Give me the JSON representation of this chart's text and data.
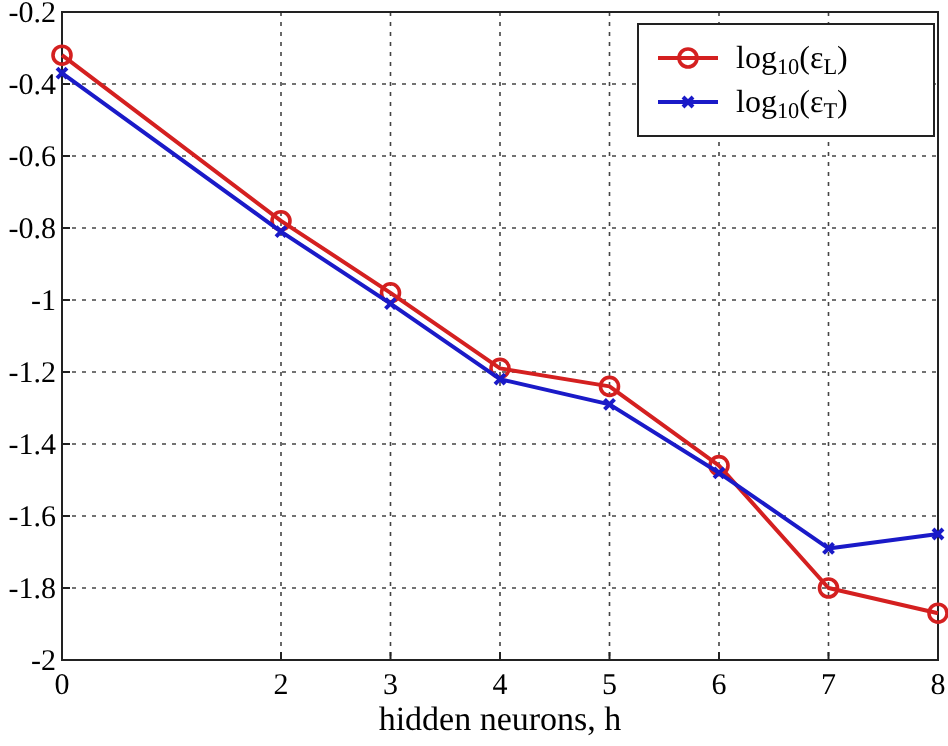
{
  "chart_data": {
    "type": "line",
    "xlabel": "hidden neurons, h",
    "x": [
      0,
      2,
      3,
      4,
      5,
      6,
      7,
      8
    ],
    "xlim": [
      0,
      8
    ],
    "xticks": [
      0,
      2,
      3,
      4,
      5,
      6,
      7,
      8
    ],
    "ylim": [
      -2,
      -0.2
    ],
    "yticks": [
      -2,
      -1.8,
      -1.6,
      -1.4,
      -1.2,
      -1,
      -0.8,
      -0.6,
      -0.4,
      -0.2
    ],
    "grid": true,
    "legend": "top right",
    "series": [
      {
        "name": "log$_{10}$(ε$_{L}$)",
        "color": "#d42020",
        "marker": "circle",
        "values": [
          -0.32,
          -0.78,
          -0.98,
          -1.19,
          -1.24,
          -1.46,
          -1.8,
          -1.87
        ]
      },
      {
        "name": "log$_{10}$(ε$_{T}$)",
        "color": "#1a1ac8",
        "marker": "cross",
        "values": [
          -0.37,
          -0.81,
          -1.01,
          -1.22,
          -1.29,
          -1.48,
          -1.69,
          -1.65
        ]
      }
    ]
  }
}
